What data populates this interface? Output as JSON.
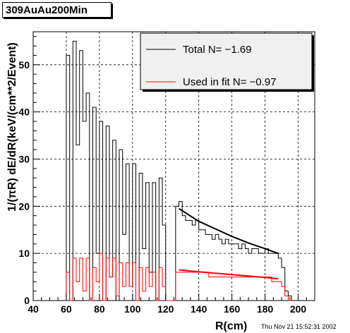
{
  "window": {
    "title": "309AuAu200Min",
    "timestamp": "Thu Nov 21 15:52:31 2002"
  },
  "chart_data": {
    "type": "line",
    "xlabel": "R(cm)",
    "ylabel": "1/(πR) dE/dR(keV/(cm**2/Event)",
    "xlim": [
      40,
      210
    ],
    "ylim": [
      0,
      57
    ],
    "xticks": [
      40,
      60,
      80,
      100,
      120,
      140,
      160,
      180,
      200
    ],
    "yticks": [
      0,
      10,
      20,
      30,
      40,
      50
    ],
    "grid": true,
    "legend_position": "top-right",
    "legend": [
      {
        "label": "Total N= −1.69",
        "color": "#000000"
      },
      {
        "label": "Used in fit N= −0.97",
        "color": "#ff0000"
      }
    ],
    "series": [
      {
        "name": "Total",
        "color": "#000000",
        "bin_edges": [
          60,
          62,
          64,
          66,
          68,
          70,
          72,
          74,
          76,
          78,
          80,
          82,
          84,
          86,
          88,
          90,
          92,
          94,
          96,
          98,
          100,
          102,
          104,
          106,
          108,
          110,
          112,
          114,
          116,
          118,
          120,
          122,
          124,
          126,
          128,
          130,
          132,
          134,
          136,
          138,
          140,
          142,
          144,
          146,
          148,
          150,
          152,
          154,
          156,
          158,
          160,
          162,
          164,
          166,
          168,
          170,
          172,
          174,
          176,
          178,
          180,
          182,
          184,
          186,
          188,
          190,
          192,
          194,
          196
        ],
        "values": [
          52,
          0,
          55,
          33,
          53,
          38,
          44,
          0,
          41,
          10,
          38,
          0,
          37,
          5,
          34,
          0,
          32,
          14,
          29,
          3,
          29,
          0,
          27,
          11,
          25,
          6,
          25,
          0,
          26,
          16,
          0,
          0,
          0,
          20,
          21,
          18,
          17,
          17,
          16,
          17,
          15,
          15,
          14,
          14,
          13,
          14,
          13,
          12,
          13,
          12,
          12,
          12,
          11,
          12,
          11,
          10,
          11,
          11,
          10,
          10,
          11,
          10,
          10,
          10,
          9,
          7,
          2,
          1
        ]
      },
      {
        "name": "Used in fit",
        "color": "#ff0000",
        "bin_edges": [
          60,
          62,
          64,
          66,
          68,
          70,
          72,
          74,
          76,
          78,
          80,
          82,
          84,
          86,
          88,
          90,
          92,
          94,
          96,
          98,
          100,
          102,
          104,
          106,
          108,
          110,
          112,
          114,
          116,
          118,
          120,
          122,
          124,
          126,
          128,
          130,
          132,
          134,
          136,
          138,
          140,
          142,
          144,
          146,
          148,
          150,
          152,
          154,
          156,
          158,
          160,
          162,
          164,
          166,
          168,
          170,
          172,
          174,
          176,
          178,
          180,
          182,
          184,
          186,
          188,
          190,
          192,
          194,
          196
        ],
        "values": [
          6,
          0,
          9,
          4,
          9,
          2,
          9,
          0,
          7,
          4,
          10,
          0,
          9,
          5,
          9,
          1,
          8,
          3,
          8,
          3,
          8,
          0,
          7,
          2,
          7,
          3,
          6,
          0,
          7,
          3,
          0,
          0,
          0,
          6,
          6,
          6,
          6,
          6,
          6,
          6,
          6,
          6,
          6,
          5,
          5,
          5,
          5,
          5,
          5,
          5,
          5,
          5,
          5,
          5,
          5,
          5,
          5,
          5,
          5,
          5,
          5,
          5,
          4,
          4,
          4,
          3,
          1,
          0
        ]
      }
    ],
    "fits": [
      {
        "series": "Total",
        "color": "#000000",
        "x": [
          128,
          140,
          150,
          160,
          170,
          180,
          188
        ],
        "y": [
          19.5,
          16.8,
          15.2,
          13.6,
          12.2,
          11.0,
          10.0
        ]
      },
      {
        "series": "Used in fit",
        "color": "#ff0000",
        "x": [
          128,
          140,
          150,
          160,
          170,
          180,
          188
        ],
        "y": [
          6.5,
          6.1,
          5.8,
          5.5,
          5.2,
          4.9,
          4.6
        ]
      }
    ]
  }
}
